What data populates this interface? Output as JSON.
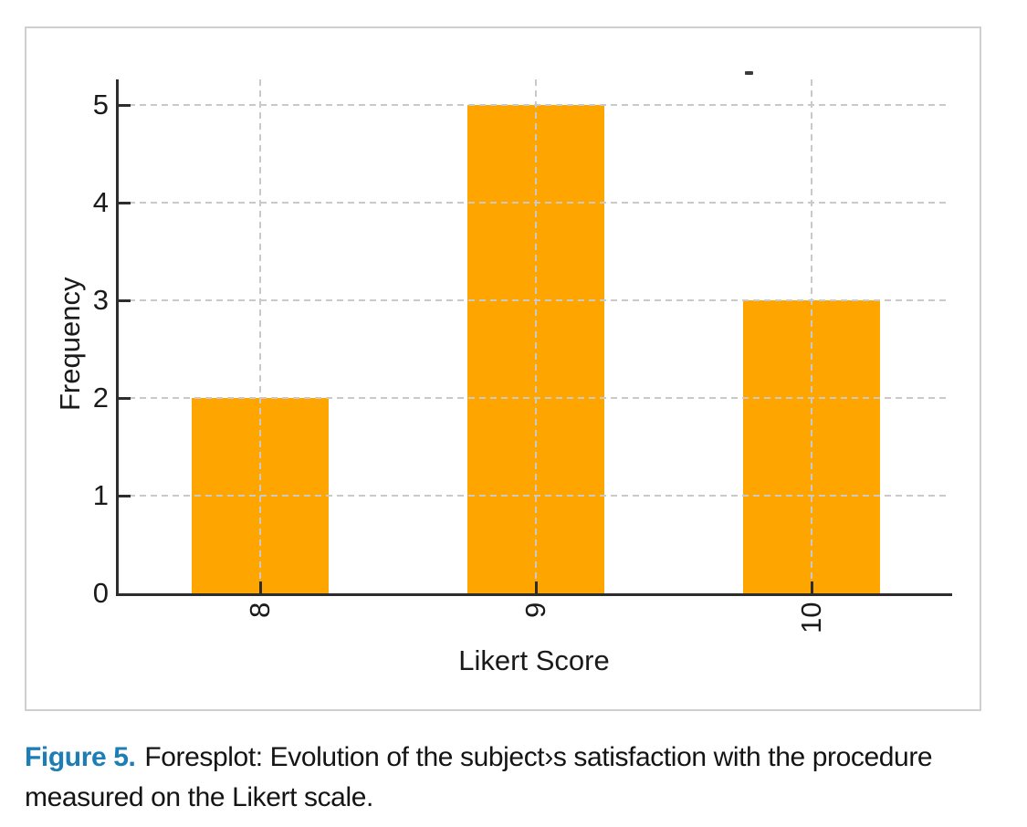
{
  "figure": {
    "caption": {
      "label": "Figure 5.",
      "text": "Foresplot: Evolution of the subject›s satisfaction with the procedure measured on the Likert scale.",
      "label_color": "#1c7eb4",
      "text_color": "#141414"
    }
  },
  "chart_data": {
    "type": "bar",
    "title": "",
    "categories": [
      "8",
      "9",
      "10"
    ],
    "values": [
      2,
      5,
      3
    ],
    "xlabel": "Likert Score",
    "ylabel": "Frequency",
    "ylim": [
      0,
      5
    ],
    "yticks": [
      0,
      1,
      2,
      3,
      4,
      5
    ],
    "bar_color": "#FFA500",
    "axis_color": "#2d2d2d",
    "tick_label_color": "#1a1a1a",
    "gridline_color": "#c9c9c9",
    "grid": "dashed horizontal at each y tick and dashed vertical at each bar center, drawn over bars",
    "x_tick_label_rotation": -90,
    "legend": "none",
    "frame_border_color": "#cfcfcf"
  }
}
